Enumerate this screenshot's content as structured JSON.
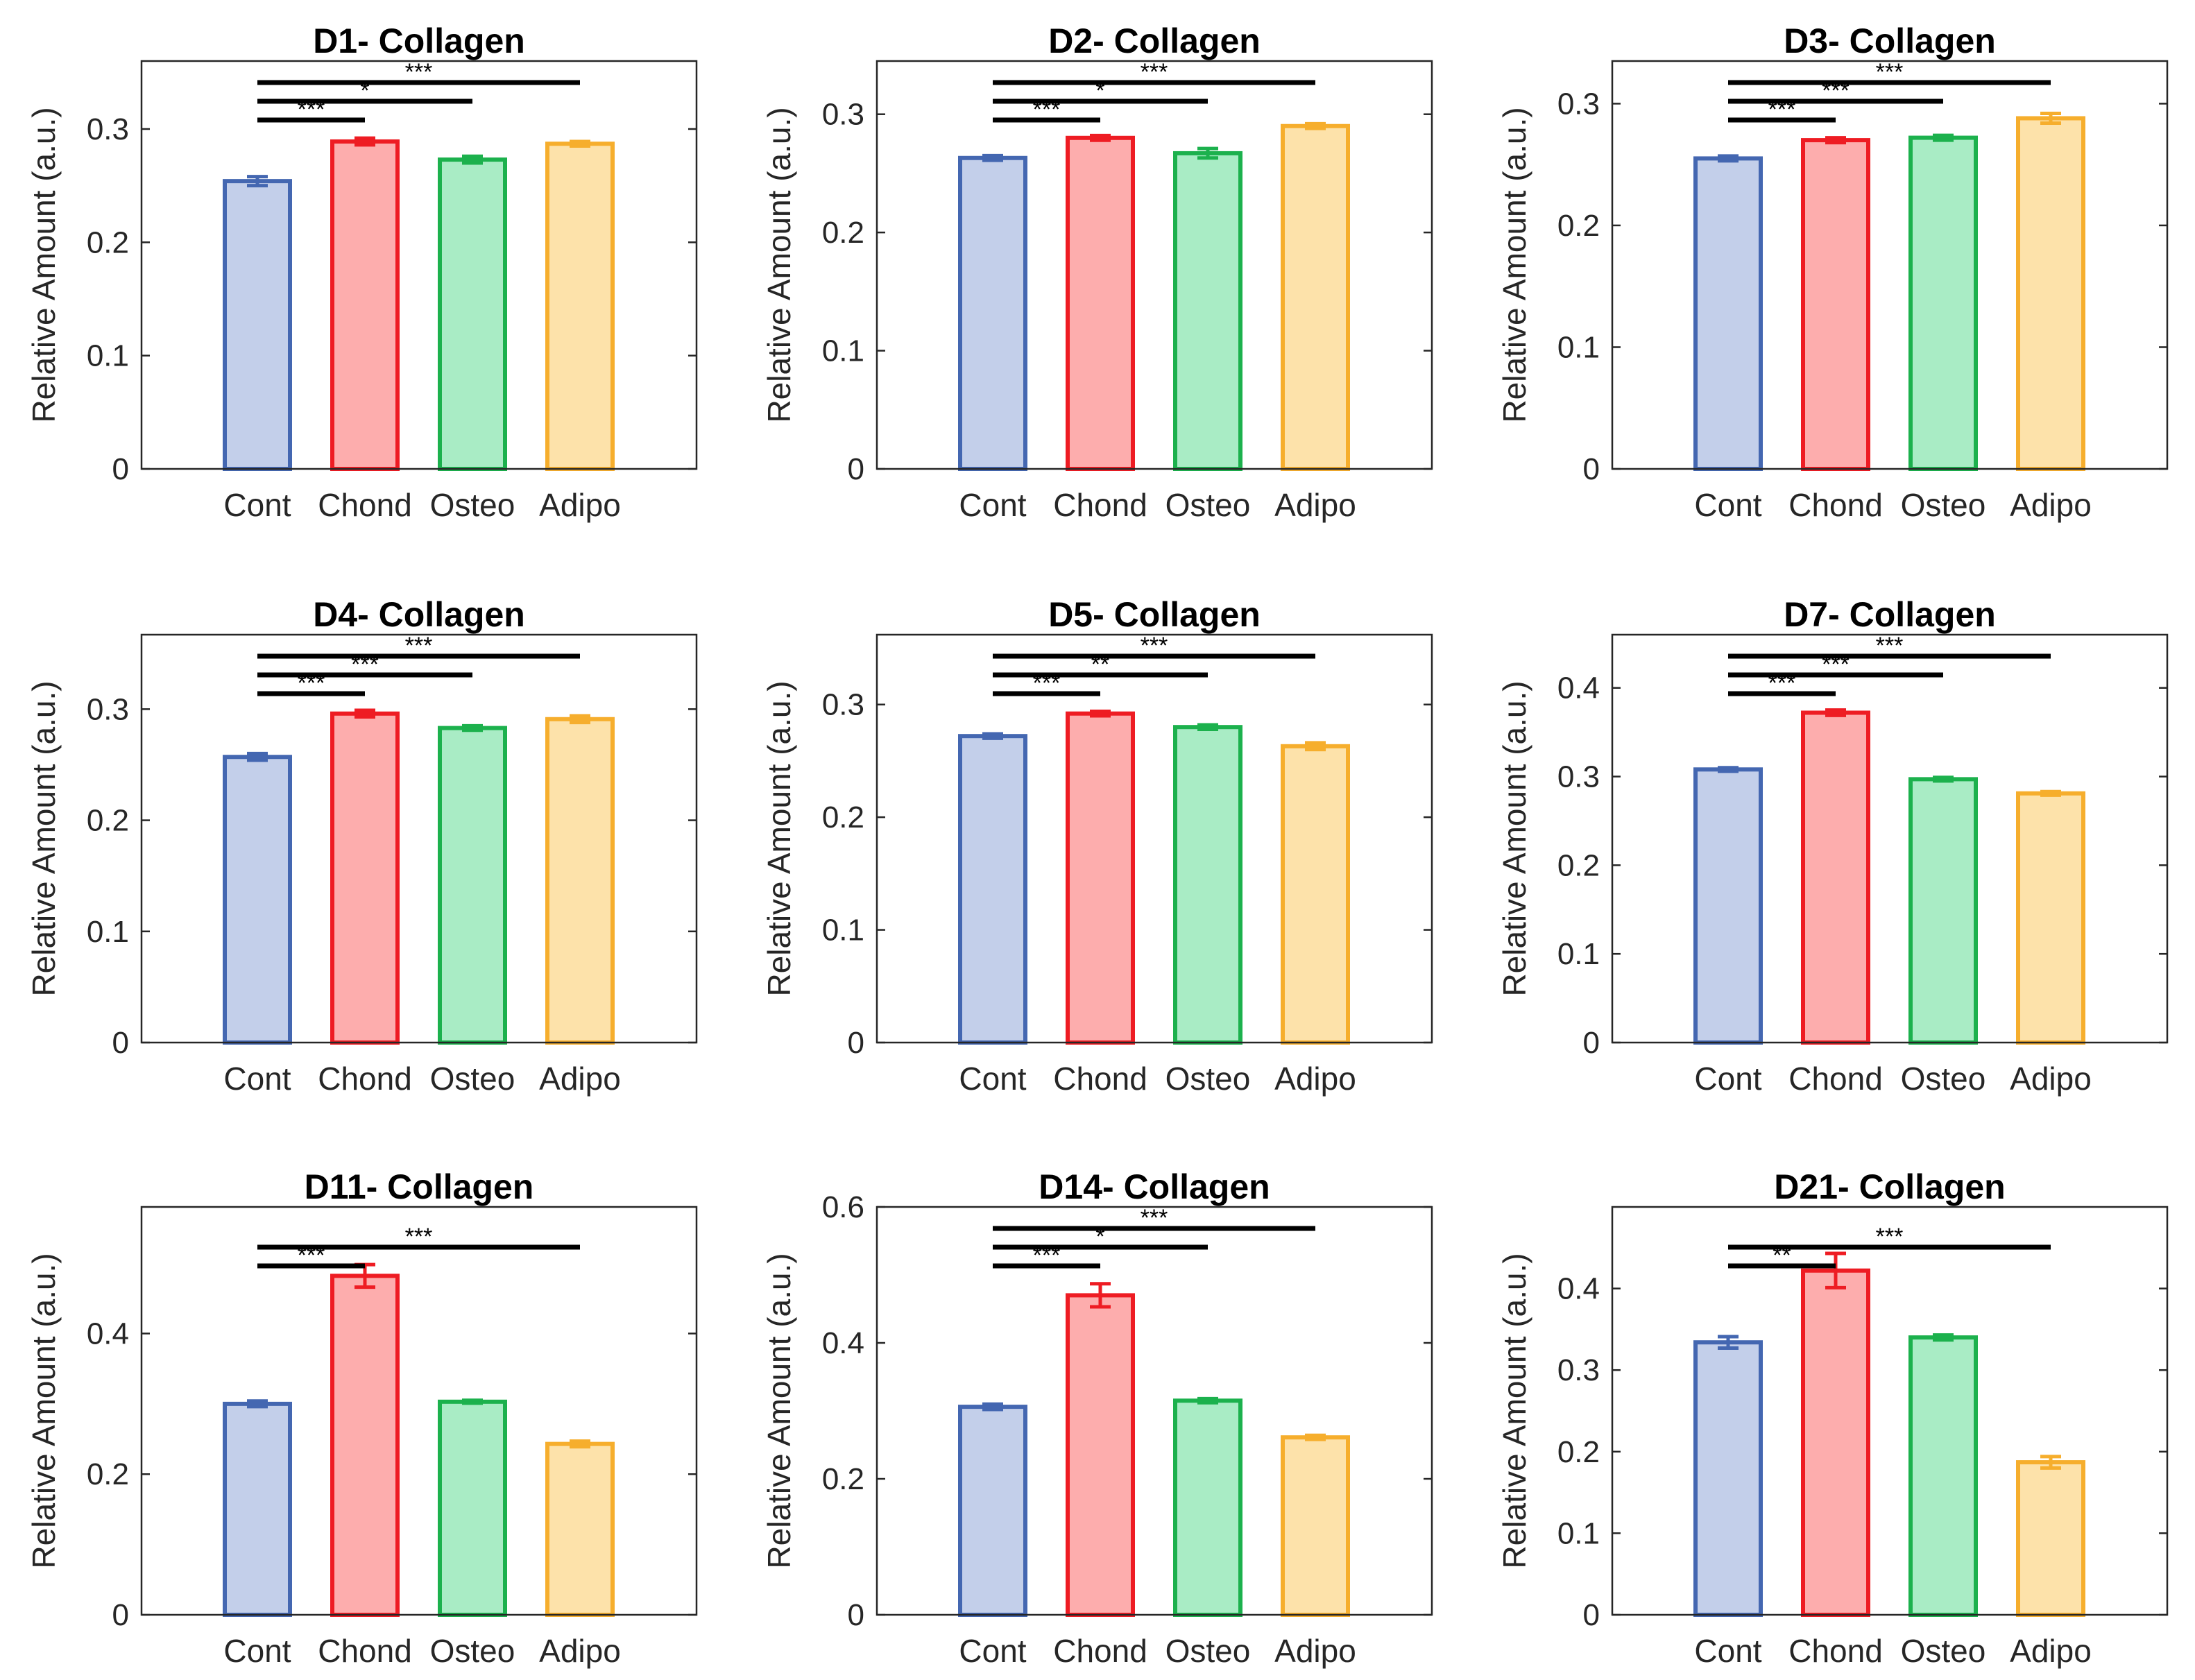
{
  "figure": {
    "ylabel": "Relative Amount (a.u.)"
  },
  "colors": {
    "edges": [
      "#4467b1",
      "#ee1c23",
      "#1cb14d",
      "#f6ae2d"
    ],
    "fills": [
      "#c3cfea",
      "#fdadad",
      "#a9ecc5",
      "#fde2aa"
    ],
    "sig_line": "#000000",
    "axis": "#262626"
  },
  "chart_data": [
    {
      "type": "bar",
      "title": "D1- Collagen",
      "xlabel": "",
      "ylabel": "Relative Amount (a.u.)",
      "categories": [
        "Cont",
        "Chond",
        "Osteo",
        "Adipo"
      ],
      "values": [
        0.254,
        0.289,
        0.273,
        0.287
      ],
      "errors": [
        0.004,
        0.003,
        0.003,
        0.002
      ],
      "ylim": [
        0,
        0.36
      ],
      "yticks": [
        0,
        0.1,
        0.2,
        0.3
      ],
      "ytick_labels": [
        "0",
        "0.1",
        "0.2",
        "0.3"
      ],
      "significance": [
        {
          "from": 0,
          "to": 1,
          "label": "***"
        },
        {
          "from": 0,
          "to": 2,
          "label": "*"
        },
        {
          "from": 0,
          "to": 3,
          "label": "***"
        }
      ]
    },
    {
      "type": "bar",
      "title": "D2- Collagen",
      "xlabel": "",
      "ylabel": "Relative Amount (a.u.)",
      "categories": [
        "Cont",
        "Chond",
        "Osteo",
        "Adipo"
      ],
      "values": [
        0.263,
        0.28,
        0.267,
        0.29
      ],
      "errors": [
        0.002,
        0.002,
        0.004,
        0.002
      ],
      "ylim": [
        0,
        0.345
      ],
      "yticks": [
        0,
        0.1,
        0.2,
        0.3
      ],
      "ytick_labels": [
        "0",
        "0.1",
        "0.2",
        "0.3"
      ],
      "significance": [
        {
          "from": 0,
          "to": 1,
          "label": "***"
        },
        {
          "from": 0,
          "to": 2,
          "label": "*"
        },
        {
          "from": 0,
          "to": 3,
          "label": "***"
        }
      ]
    },
    {
      "type": "bar",
      "title": "D3- Collagen",
      "xlabel": "",
      "ylabel": "Relative Amount (a.u.)",
      "categories": [
        "Cont",
        "Chond",
        "Osteo",
        "Adipo"
      ],
      "values": [
        0.255,
        0.27,
        0.272,
        0.288
      ],
      "errors": [
        0.002,
        0.002,
        0.002,
        0.004
      ],
      "ylim": [
        0,
        0.335
      ],
      "yticks": [
        0,
        0.1,
        0.2,
        0.3
      ],
      "ytick_labels": [
        "0",
        "0.1",
        "0.2",
        "0.3"
      ],
      "significance": [
        {
          "from": 0,
          "to": 1,
          "label": "***"
        },
        {
          "from": 0,
          "to": 2,
          "label": "***"
        },
        {
          "from": 0,
          "to": 3,
          "label": "***"
        }
      ]
    },
    {
      "type": "bar",
      "title": "D4- Collagen",
      "xlabel": "",
      "ylabel": "Relative Amount (a.u.)",
      "categories": [
        "Cont",
        "Chond",
        "Osteo",
        "Adipo"
      ],
      "values": [
        0.257,
        0.296,
        0.283,
        0.291
      ],
      "errors": [
        0.003,
        0.003,
        0.002,
        0.003
      ],
      "ylim": [
        0,
        0.367
      ],
      "yticks": [
        0,
        0.1,
        0.2,
        0.3
      ],
      "ytick_labels": [
        "0",
        "0.1",
        "0.2",
        "0.3"
      ],
      "significance": [
        {
          "from": 0,
          "to": 1,
          "label": "***"
        },
        {
          "from": 0,
          "to": 2,
          "label": "***"
        },
        {
          "from": 0,
          "to": 3,
          "label": "***"
        }
      ]
    },
    {
      "type": "bar",
      "title": "D5- Collagen",
      "xlabel": "",
      "ylabel": "Relative Amount (a.u.)",
      "categories": [
        "Cont",
        "Chond",
        "Osteo",
        "Adipo"
      ],
      "values": [
        0.272,
        0.292,
        0.28,
        0.263
      ],
      "errors": [
        0.002,
        0.002,
        0.002,
        0.003
      ],
      "ylim": [
        0,
        0.362
      ],
      "yticks": [
        0,
        0.1,
        0.2,
        0.3
      ],
      "ytick_labels": [
        "0",
        "0.1",
        "0.2",
        "0.3"
      ],
      "significance": [
        {
          "from": 0,
          "to": 1,
          "label": "***"
        },
        {
          "from": 0,
          "to": 2,
          "label": "**"
        },
        {
          "from": 0,
          "to": 3,
          "label": "***"
        }
      ]
    },
    {
      "type": "bar",
      "title": "D7- Collagen",
      "xlabel": "",
      "ylabel": "Relative Amount (a.u.)",
      "categories": [
        "Cont",
        "Chond",
        "Osteo",
        "Adipo"
      ],
      "values": [
        0.308,
        0.372,
        0.297,
        0.281
      ],
      "errors": [
        0.002,
        0.003,
        0.002,
        0.002
      ],
      "ylim": [
        0,
        0.46
      ],
      "yticks": [
        0,
        0.1,
        0.2,
        0.3,
        0.4
      ],
      "ytick_labels": [
        "0",
        "0.1",
        "0.2",
        "0.3",
        "0.4"
      ],
      "significance": [
        {
          "from": 0,
          "to": 1,
          "label": "***"
        },
        {
          "from": 0,
          "to": 2,
          "label": "***"
        },
        {
          "from": 0,
          "to": 3,
          "label": "***"
        }
      ]
    },
    {
      "type": "bar",
      "title": "D11- Collagen",
      "xlabel": "",
      "ylabel": "Relative Amount (a.u.)",
      "categories": [
        "Cont",
        "Chond",
        "Osteo",
        "Adipo"
      ],
      "values": [
        0.3,
        0.482,
        0.303,
        0.243
      ],
      "errors": [
        0.004,
        0.016,
        0.002,
        0.004
      ],
      "ylim": [
        0,
        0.58
      ],
      "yticks": [
        0,
        0.2,
        0.4
      ],
      "ytick_labels": [
        "0",
        "0.2",
        "0.4"
      ],
      "significance": [
        {
          "from": 0,
          "to": 1,
          "label": "***"
        },
        {
          "from": 0,
          "to": 3,
          "label": "***"
        }
      ]
    },
    {
      "type": "bar",
      "title": "D14- Collagen",
      "xlabel": "",
      "ylabel": "Relative Amount (a.u.)",
      "categories": [
        "Cont",
        "Chond",
        "Osteo",
        "Adipo"
      ],
      "values": [
        0.306,
        0.47,
        0.315,
        0.261
      ],
      "errors": [
        0.004,
        0.017,
        0.003,
        0.003
      ],
      "ylim": [
        0,
        0.6
      ],
      "yticks": [
        0,
        0.2,
        0.4,
        0.6
      ],
      "ytick_labels": [
        "0",
        "0.2",
        "0.4",
        "0.6"
      ],
      "significance": [
        {
          "from": 0,
          "to": 1,
          "label": "***"
        },
        {
          "from": 0,
          "to": 2,
          "label": "*"
        },
        {
          "from": 0,
          "to": 3,
          "label": "***"
        }
      ]
    },
    {
      "type": "bar",
      "title": "D21- Collagen",
      "xlabel": "",
      "ylabel": "Relative Amount (a.u.)",
      "categories": [
        "Cont",
        "Chond",
        "Osteo",
        "Adipo"
      ],
      "values": [
        0.334,
        0.422,
        0.34,
        0.187
      ],
      "errors": [
        0.007,
        0.021,
        0.003,
        0.007
      ],
      "ylim": [
        0,
        0.5
      ],
      "yticks": [
        0,
        0.1,
        0.2,
        0.3,
        0.4
      ],
      "ytick_labels": [
        "0",
        "0.1",
        "0.2",
        "0.3",
        "0.4"
      ],
      "significance": [
        {
          "from": 0,
          "to": 1,
          "label": "**"
        },
        {
          "from": 0,
          "to": 3,
          "label": "***"
        }
      ]
    }
  ]
}
